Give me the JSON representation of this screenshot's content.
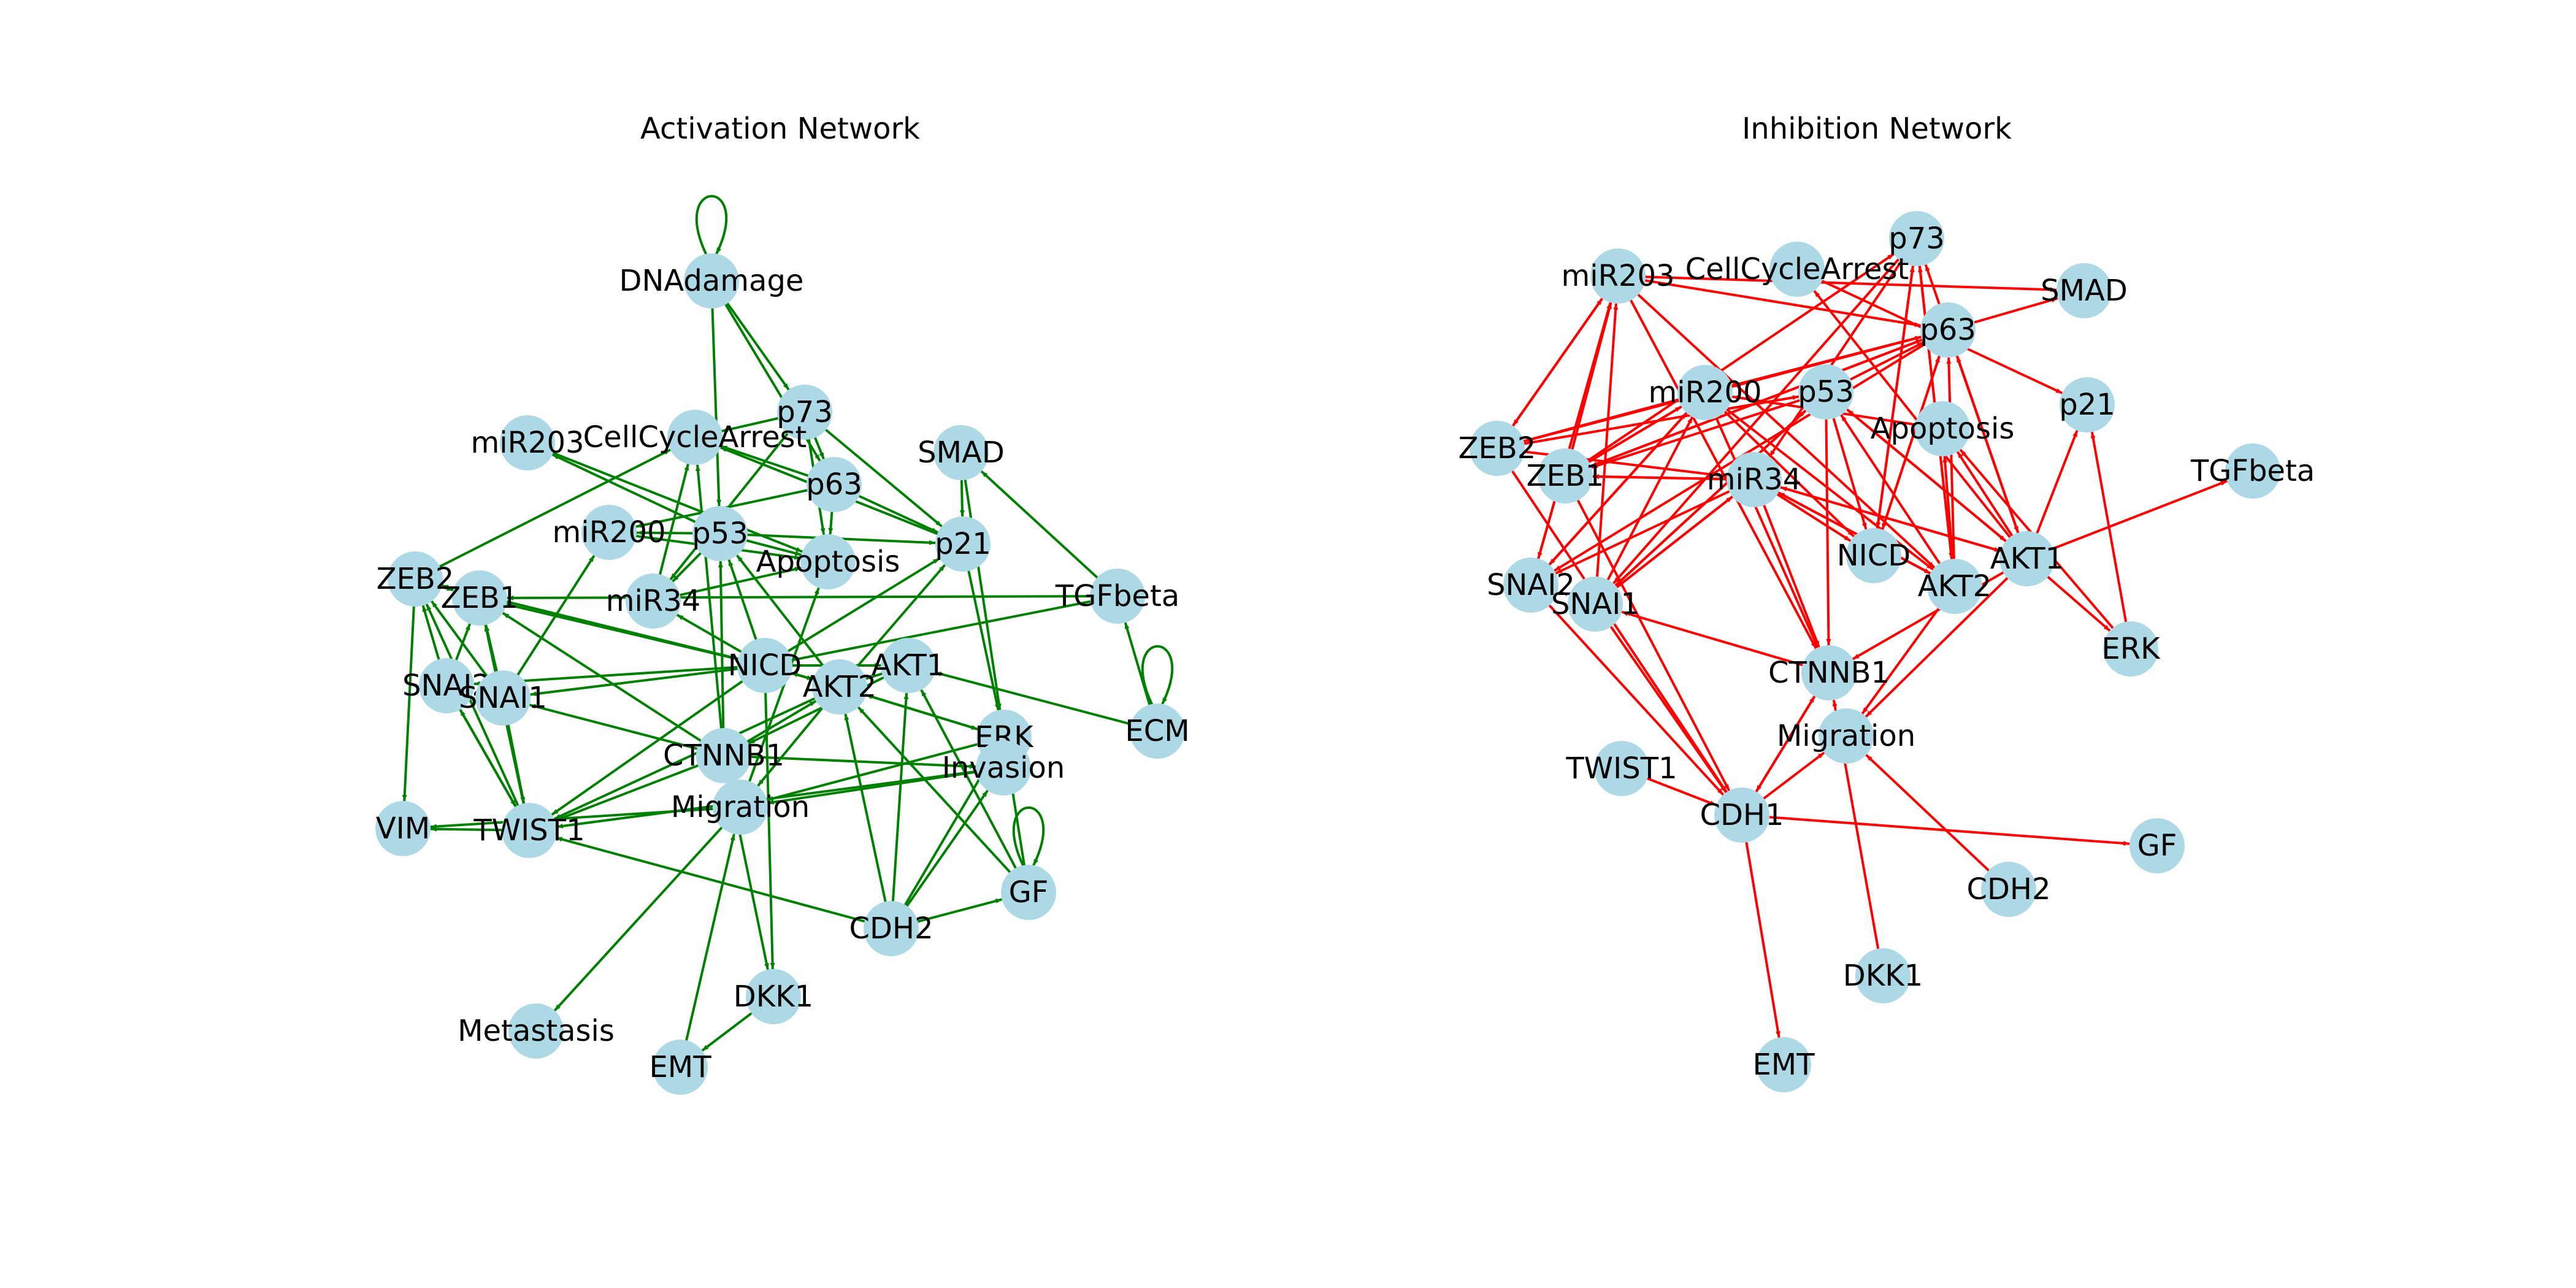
{
  "colors": {
    "node_fill": "#add8e6",
    "activation_edge": "#008000",
    "inhibition_edge": "#ff0000",
    "label_text": "#000000",
    "background": "#ffffff"
  },
  "panels": [
    {
      "id": "activation",
      "title": "Activation Network",
      "edge_color_key": "activation_edge",
      "nodes": [
        "DNAdamage",
        "p73",
        "SMAD",
        "miR203",
        "CellCycleArrest",
        "p63",
        "p21",
        "miR200",
        "p53",
        "Apoptosis",
        "ZEB2",
        "ZEB1",
        "miR34",
        "TGFbeta",
        "SNAI2",
        "SNAI1",
        "NICD",
        "AKT2",
        "AKT1",
        "ERK",
        "ECM",
        "CTNNB1",
        "Invasion",
        "VIM",
        "TWIST1",
        "Migration",
        "GF",
        "CDH2",
        "DKK1",
        "Metastasis",
        "EMT"
      ],
      "edges": [
        [
          "DNAdamage",
          "DNAdamage"
        ],
        [
          "DNAdamage",
          "p53"
        ],
        [
          "DNAdamage",
          "p73"
        ],
        [
          "DNAdamage",
          "p63"
        ],
        [
          "p73",
          "p21"
        ],
        [
          "p73",
          "CellCycleArrest"
        ],
        [
          "p73",
          "Apoptosis"
        ],
        [
          "p73",
          "p63"
        ],
        [
          "p73",
          "miR34"
        ],
        [
          "p63",
          "p21"
        ],
        [
          "p63",
          "Apoptosis"
        ],
        [
          "p63",
          "miR200"
        ],
        [
          "p63",
          "CellCycleArrest"
        ],
        [
          "p53",
          "p21"
        ],
        [
          "p53",
          "Apoptosis"
        ],
        [
          "p53",
          "miR34"
        ],
        [
          "p53",
          "miR200"
        ],
        [
          "p53",
          "miR203"
        ],
        [
          "p21",
          "CellCycleArrest"
        ],
        [
          "p21",
          "ERK"
        ],
        [
          "SMAD",
          "p21"
        ],
        [
          "SMAD",
          "ERK"
        ],
        [
          "TGFbeta",
          "SMAD"
        ],
        [
          "TGFbeta",
          "ZEB1"
        ],
        [
          "TGFbeta",
          "NICD"
        ],
        [
          "ECM",
          "ECM"
        ],
        [
          "ECM",
          "TGFbeta"
        ],
        [
          "ECM",
          "AKT1"
        ],
        [
          "GF",
          "GF"
        ],
        [
          "GF",
          "AKT1"
        ],
        [
          "GF",
          "AKT2"
        ],
        [
          "GF",
          "ERK"
        ],
        [
          "NICD",
          "ZEB1"
        ],
        [
          "NICD",
          "ZEB2"
        ],
        [
          "NICD",
          "SNAI1"
        ],
        [
          "NICD",
          "SNAI2"
        ],
        [
          "NICD",
          "AKT1"
        ],
        [
          "NICD",
          "AKT2"
        ],
        [
          "NICD",
          "DKK1"
        ],
        [
          "NICD",
          "p21"
        ],
        [
          "NICD",
          "miR34"
        ],
        [
          "NICD",
          "TWIST1"
        ],
        [
          "NICD",
          "p53"
        ],
        [
          "CTNNB1",
          "ZEB1"
        ],
        [
          "CTNNB1",
          "SNAI1"
        ],
        [
          "CTNNB1",
          "TWIST1"
        ],
        [
          "CTNNB1",
          "DKK1"
        ],
        [
          "CTNNB1",
          "Invasion"
        ],
        [
          "CTNNB1",
          "AKT2"
        ],
        [
          "CTNNB1",
          "CellCycleArrest"
        ],
        [
          "CTNNB1",
          "p53"
        ],
        [
          "AKT2",
          "p21"
        ],
        [
          "AKT2",
          "TWIST1"
        ],
        [
          "AKT2",
          "Migration"
        ],
        [
          "AKT2",
          "ERK"
        ],
        [
          "AKT2",
          "NICD"
        ],
        [
          "AKT2",
          "p53"
        ],
        [
          "AKT1",
          "AKT2"
        ],
        [
          "AKT1",
          "CTNNB1"
        ],
        [
          "ERK",
          "Migration"
        ],
        [
          "ERK",
          "AKT2"
        ],
        [
          "ZEB2",
          "CellCycleArrest"
        ],
        [
          "ZEB2",
          "VIM"
        ],
        [
          "ZEB2",
          "ZEB1"
        ],
        [
          "SNAI2",
          "ZEB1"
        ],
        [
          "SNAI2",
          "ZEB2"
        ],
        [
          "SNAI2",
          "TWIST1"
        ],
        [
          "SNAI1",
          "ZEB1"
        ],
        [
          "SNAI1",
          "ZEB2"
        ],
        [
          "SNAI1",
          "TWIST1"
        ],
        [
          "SNAI1",
          "miR200"
        ],
        [
          "TWIST1",
          "ZEB1"
        ],
        [
          "TWIST1",
          "ZEB2"
        ],
        [
          "TWIST1",
          "SNAI2"
        ],
        [
          "TWIST1",
          "VIM"
        ],
        [
          "Migration",
          "Metastasis"
        ],
        [
          "Migration",
          "VIM"
        ],
        [
          "Migration",
          "Apoptosis"
        ],
        [
          "Invasion",
          "Migration"
        ],
        [
          "Invasion",
          "TWIST1"
        ],
        [
          "CDH2",
          "TWIST1"
        ],
        [
          "CDH2",
          "AKT1"
        ],
        [
          "CDH2",
          "AKT2"
        ],
        [
          "CDH2",
          "Invasion"
        ],
        [
          "CDH2",
          "GF"
        ],
        [
          "CDH2",
          "ERK"
        ],
        [
          "DKK1",
          "EMT"
        ],
        [
          "EMT",
          "Migration"
        ],
        [
          "miR34",
          "Apoptosis"
        ],
        [
          "miR34",
          "CellCycleArrest"
        ],
        [
          "miR200",
          "Apoptosis"
        ],
        [
          "miR203",
          "Apoptosis"
        ]
      ]
    },
    {
      "id": "inhibition",
      "title": "Inhibition Network",
      "edge_color_key": "inhibition_edge",
      "nodes": [
        "p73",
        "miR203",
        "CellCycleArrest",
        "SMAD",
        "p63",
        "miR200",
        "p53",
        "p21",
        "Apoptosis",
        "ZEB2",
        "ZEB1",
        "miR34",
        "TGFbeta",
        "NICD",
        "AKT1",
        "SNAI2",
        "SNAI1",
        "AKT2",
        "ERK",
        "CTNNB1",
        "Migration",
        "TWIST1",
        "CDH1",
        "GF",
        "CDH2",
        "DKK1",
        "EMT"
      ],
      "edges": [
        [
          "miR203",
          "SMAD"
        ],
        [
          "miR203",
          "p63"
        ],
        [
          "miR203",
          "ZEB2"
        ],
        [
          "miR203",
          "SNAI2"
        ],
        [
          "miR203",
          "CTNNB1"
        ],
        [
          "miR203",
          "AKT2"
        ],
        [
          "miR200",
          "ZEB1"
        ],
        [
          "miR200",
          "ZEB2"
        ],
        [
          "miR200",
          "SNAI2"
        ],
        [
          "miR200",
          "NICD"
        ],
        [
          "miR200",
          "CTNNB1"
        ],
        [
          "miR200",
          "AKT2"
        ],
        [
          "miR200",
          "p63"
        ],
        [
          "miR34",
          "SNAI1"
        ],
        [
          "miR34",
          "SNAI2"
        ],
        [
          "miR34",
          "NICD"
        ],
        [
          "miR34",
          "CTNNB1"
        ],
        [
          "miR34",
          "AKT1"
        ],
        [
          "miR34",
          "AKT2"
        ],
        [
          "miR34",
          "ZEB1"
        ],
        [
          "p53",
          "ZEB1"
        ],
        [
          "p53",
          "SNAI1"
        ],
        [
          "p53",
          "NICD"
        ],
        [
          "p53",
          "CTNNB1"
        ],
        [
          "p53",
          "AKT1"
        ],
        [
          "p53",
          "p63"
        ],
        [
          "p63",
          "SNAI2"
        ],
        [
          "p63",
          "ZEB1"
        ],
        [
          "p63",
          "NICD"
        ],
        [
          "p63",
          "SMAD"
        ],
        [
          "p63",
          "AKT1"
        ],
        [
          "p73",
          "SNAI1"
        ],
        [
          "p73",
          "NICD"
        ],
        [
          "p73",
          "AKT2"
        ],
        [
          "p73",
          "miR34"
        ],
        [
          "ZEB1",
          "miR203"
        ],
        [
          "ZEB1",
          "miR200"
        ],
        [
          "ZEB1",
          "miR34"
        ],
        [
          "ZEB1",
          "p63"
        ],
        [
          "ZEB1",
          "CDH1"
        ],
        [
          "ZEB1",
          "p73"
        ],
        [
          "ZEB2",
          "miR203"
        ],
        [
          "ZEB2",
          "miR200"
        ],
        [
          "ZEB2",
          "miR34"
        ],
        [
          "ZEB2",
          "p63"
        ],
        [
          "ZEB2",
          "CDH1"
        ],
        [
          "ZEB2",
          "p53"
        ],
        [
          "SNAI1",
          "miR203"
        ],
        [
          "SNAI1",
          "miR200"
        ],
        [
          "SNAI1",
          "miR34"
        ],
        [
          "SNAI1",
          "p53"
        ],
        [
          "SNAI1",
          "CDH1"
        ],
        [
          "SNAI2",
          "miR203"
        ],
        [
          "SNAI2",
          "miR200"
        ],
        [
          "SNAI2",
          "CDH1"
        ],
        [
          "AKT1",
          "p53"
        ],
        [
          "AKT1",
          "p63"
        ],
        [
          "AKT1",
          "p73"
        ],
        [
          "AKT1",
          "p21"
        ],
        [
          "AKT1",
          "TGFbeta"
        ],
        [
          "AKT1",
          "Apoptosis"
        ],
        [
          "AKT1",
          "CellCycleArrest"
        ],
        [
          "AKT1",
          "miR34"
        ],
        [
          "AKT1",
          "CTNNB1"
        ],
        [
          "AKT1",
          "Migration"
        ],
        [
          "AKT1",
          "ERK"
        ],
        [
          "AKT2",
          "p53"
        ],
        [
          "AKT2",
          "p63"
        ],
        [
          "AKT2",
          "p73"
        ],
        [
          "AKT2",
          "Apoptosis"
        ],
        [
          "AKT2",
          "miR34"
        ],
        [
          "AKT2",
          "Migration"
        ],
        [
          "NICD",
          "p63"
        ],
        [
          "NICD",
          "p73"
        ],
        [
          "CTNNB1",
          "SNAI1"
        ],
        [
          "CTNNB1",
          "CDH1"
        ],
        [
          "ERK",
          "Apoptosis"
        ],
        [
          "ERK",
          "p21"
        ],
        [
          "TWIST1",
          "CDH1"
        ],
        [
          "CDH1",
          "CTNNB1"
        ],
        [
          "CDH1",
          "Migration"
        ],
        [
          "CDH1",
          "GF"
        ],
        [
          "CDH1",
          "EMT"
        ],
        [
          "CDH2",
          "Migration"
        ],
        [
          "DKK1",
          "CTNNB1"
        ],
        [
          "CellCycleArrest",
          "p21"
        ],
        [
          "Apoptosis",
          "miR200"
        ]
      ]
    }
  ]
}
